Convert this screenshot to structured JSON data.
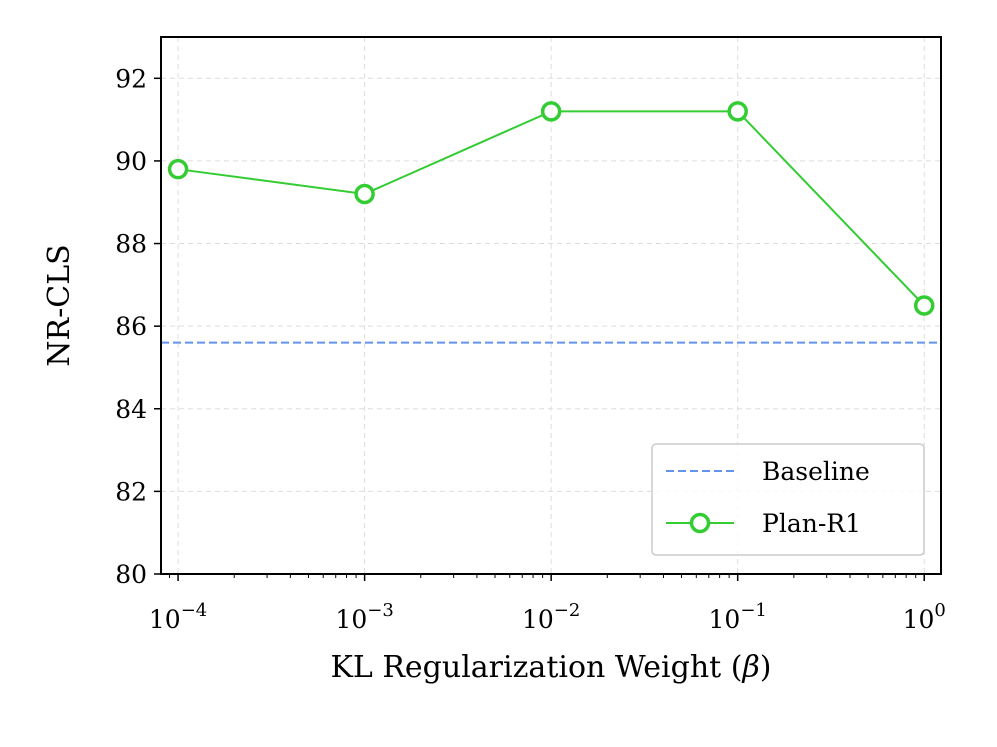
{
  "chart_data": {
    "type": "line",
    "xscale": "log",
    "x": [
      0.0001,
      0.001,
      0.01,
      0.1,
      1
    ],
    "series": [
      {
        "name": "Plan-R1",
        "values": [
          89.8,
          89.2,
          91.2,
          91.2,
          86.5
        ],
        "color": "#33cc33",
        "marker": "open-circle"
      }
    ],
    "baseline": {
      "name": "Baseline",
      "value": 85.6,
      "color": "#6495ed",
      "style": "dashed"
    },
    "xlabel": "KL Regularization Weight (β)",
    "ylabel": "NR-CLS",
    "xlim": [
      8.1e-05,
      1.23
    ],
    "ylim": [
      80,
      93
    ],
    "yticks": [
      80,
      82,
      84,
      86,
      88,
      90,
      92
    ],
    "xticks": [
      {
        "value": 0.0001,
        "base": "10",
        "exp": "−4"
      },
      {
        "value": 0.001,
        "base": "10",
        "exp": "−3"
      },
      {
        "value": 0.01,
        "base": "10",
        "exp": "−2"
      },
      {
        "value": 0.1,
        "base": "10",
        "exp": "−1"
      },
      {
        "value": 1,
        "base": "10",
        "exp": "0"
      }
    ],
    "grid": true,
    "legend": {
      "position": "lower-right",
      "entries": [
        "Baseline",
        "Plan-R1"
      ]
    }
  }
}
